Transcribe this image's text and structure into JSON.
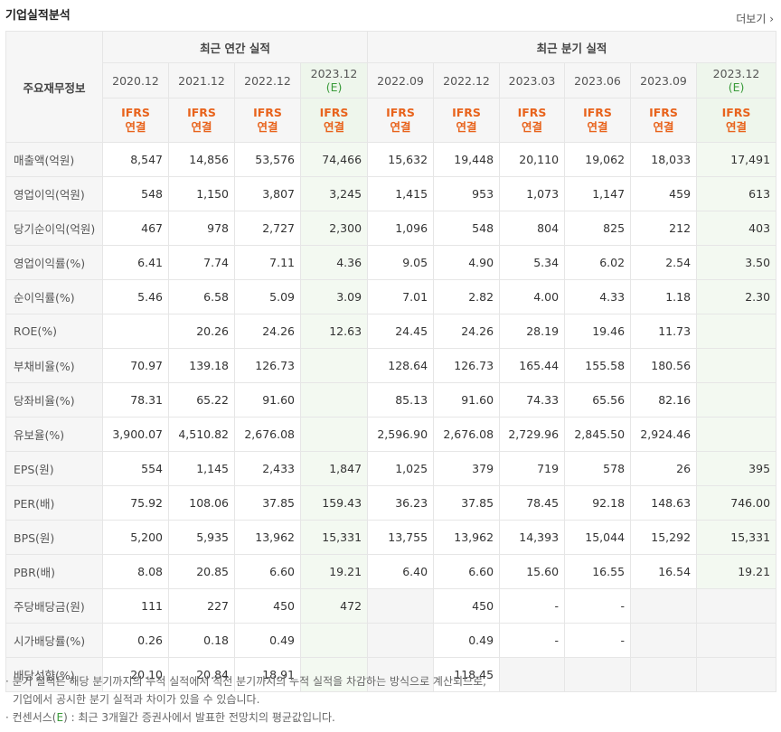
{
  "title": "기업실적분석",
  "more_label": "더보기",
  "table": {
    "row_head": "주요재무정보",
    "annual_title": "최근 연간 실적",
    "quarterly_title": "최근 분기 실적",
    "annual_periods": [
      {
        "label": "2020.12",
        "est": ""
      },
      {
        "label": "2021.12",
        "est": ""
      },
      {
        "label": "2022.12",
        "est": ""
      },
      {
        "label": "2023.12",
        "est": "(E)"
      }
    ],
    "quarterly_periods": [
      {
        "label": "2022.09",
        "est": ""
      },
      {
        "label": "2022.12",
        "est": ""
      },
      {
        "label": "2023.03",
        "est": ""
      },
      {
        "label": "2023.06",
        "est": ""
      },
      {
        "label": "2023.09",
        "est": ""
      },
      {
        "label": "2023.12",
        "est": "(E)"
      }
    ],
    "ifrs_top": "IFRS",
    "ifrs_bottom": "연결",
    "rows": [
      {
        "label": "매출액(억원)",
        "values": [
          "8,547",
          "14,856",
          "53,576",
          "74,466",
          "15,632",
          "19,448",
          "20,110",
          "19,062",
          "18,033",
          "17,491"
        ]
      },
      {
        "label": "영업이익(억원)",
        "values": [
          "548",
          "1,150",
          "3,807",
          "3,245",
          "1,415",
          "953",
          "1,073",
          "1,147",
          "459",
          "613"
        ]
      },
      {
        "label": "당기순이익(억원)",
        "values": [
          "467",
          "978",
          "2,727",
          "2,300",
          "1,096",
          "548",
          "804",
          "825",
          "212",
          "403"
        ]
      },
      {
        "label": "영업이익률(%)",
        "values": [
          "6.41",
          "7.74",
          "7.11",
          "4.36",
          "9.05",
          "4.90",
          "5.34",
          "6.02",
          "2.54",
          "3.50"
        ]
      },
      {
        "label": "순이익률(%)",
        "values": [
          "5.46",
          "6.58",
          "5.09",
          "3.09",
          "7.01",
          "2.82",
          "4.00",
          "4.33",
          "1.18",
          "2.30"
        ]
      },
      {
        "label": "ROE(%)",
        "values": [
          "",
          "20.26",
          "24.26",
          "12.63",
          "24.45",
          "24.26",
          "28.19",
          "19.46",
          "11.73",
          ""
        ]
      },
      {
        "label": "부채비율(%)",
        "values": [
          "70.97",
          "139.18",
          "126.73",
          "",
          "128.64",
          "126.73",
          "165.44",
          "155.58",
          "180.56",
          ""
        ]
      },
      {
        "label": "당좌비율(%)",
        "values": [
          "78.31",
          "65.22",
          "91.60",
          "",
          "85.13",
          "91.60",
          "74.33",
          "65.56",
          "82.16",
          ""
        ]
      },
      {
        "label": "유보율(%)",
        "values": [
          "3,900.07",
          "4,510.82",
          "2,676.08",
          "",
          "2,596.90",
          "2,676.08",
          "2,729.96",
          "2,845.50",
          "2,924.46",
          ""
        ]
      },
      {
        "label": "EPS(원)",
        "values": [
          "554",
          "1,145",
          "2,433",
          "1,847",
          "1,025",
          "379",
          "719",
          "578",
          "26",
          "395"
        ]
      },
      {
        "label": "PER(배)",
        "values": [
          "75.92",
          "108.06",
          "37.85",
          "159.43",
          "36.23",
          "37.85",
          "78.45",
          "92.18",
          "148.63",
          "746.00"
        ]
      },
      {
        "label": "BPS(원)",
        "values": [
          "5,200",
          "5,935",
          "13,962",
          "15,331",
          "13,755",
          "13,962",
          "14,393",
          "15,044",
          "15,292",
          "15,331"
        ]
      },
      {
        "label": "PBR(배)",
        "values": [
          "8.08",
          "20.85",
          "6.60",
          "19.21",
          "6.40",
          "6.60",
          "15.60",
          "16.55",
          "16.54",
          "19.21"
        ]
      },
      {
        "label": "주당배당금(원)",
        "values": [
          "111",
          "227",
          "450",
          "472",
          "",
          "450",
          "-",
          "-",
          "",
          ""
        ]
      },
      {
        "label": "시가배당률(%)",
        "values": [
          "0.26",
          "0.18",
          "0.49",
          "",
          "",
          "0.49",
          "-",
          "-",
          "",
          ""
        ]
      },
      {
        "label": "배당성향(%)",
        "values": [
          "20.10",
          "20.84",
          "18.91",
          "",
          "",
          "118.45",
          "",
          "",
          "",
          ""
        ]
      }
    ]
  },
  "notes": {
    "line1": "· 분기 실적은 해당 분기까지의 누적 실적에서 직전 분기까지의 누적 실적을 차감하는 방식으로 계산되므로,",
    "line2": "기업에서 공시한 분기 실적과 차이가 있을 수 있습니다.",
    "line3_prefix": "· 컨센서스(",
    "line3_e": "E",
    "line3_suffix": ") : 최근 3개월간 증권사에서 발표한 전망치의 평균값입니다."
  }
}
